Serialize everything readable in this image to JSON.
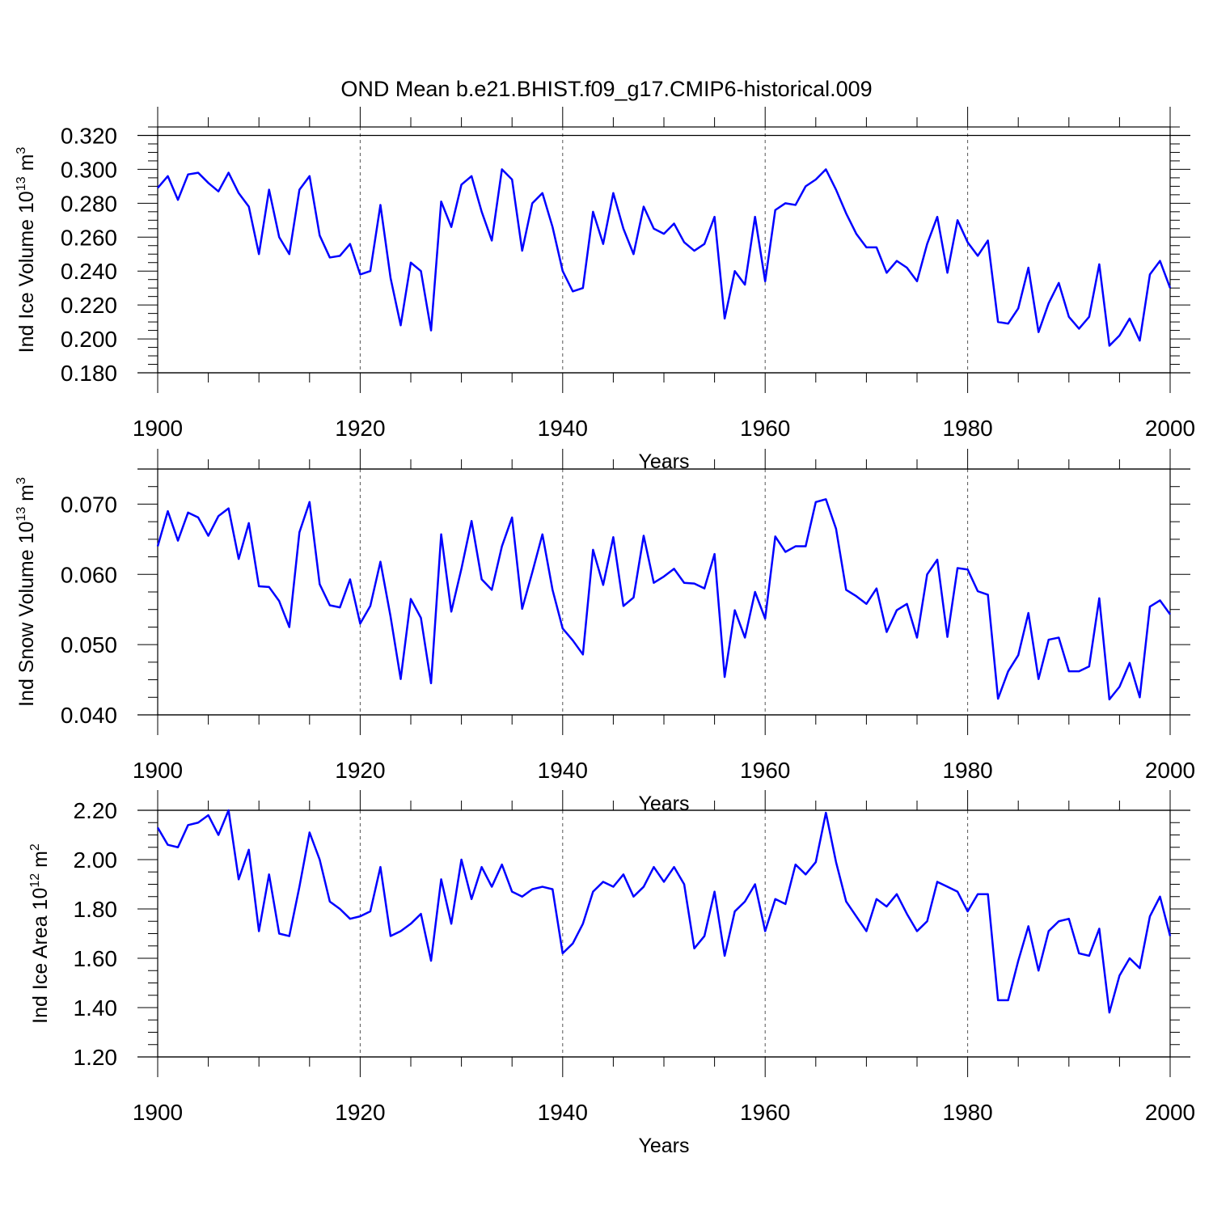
{
  "title": "OND Mean b.e21.BHIST.f09_g17.CMIP6-historical.009",
  "colors": {
    "series": "#0000ff",
    "axis": "#000000",
    "grid": "#555555"
  },
  "chart_data": [
    {
      "type": "line",
      "name": "ice-volume",
      "xlabel": "Years",
      "ylabel": {
        "base": "Ind Ice Volume 10",
        "exp1": "13",
        "unit": " m",
        "exp2": "3"
      },
      "xlim": [
        1900,
        2000
      ],
      "ylim": [
        0.18,
        0.325
      ],
      "xticks": [
        1900,
        1920,
        1940,
        1960,
        1980,
        2000
      ],
      "xtick_labels": [
        "1900",
        "1920",
        "1940",
        "1960",
        "1980",
        "2000"
      ],
      "yticks": [
        0.18,
        0.2,
        0.22,
        0.24,
        0.26,
        0.28,
        0.3,
        0.32
      ],
      "ytick_labels": [
        "0.180",
        "0.200",
        "0.220",
        "0.240",
        "0.260",
        "0.280",
        "0.300",
        "0.320"
      ],
      "ref_line": 0.32,
      "x_start": 1900,
      "values": [
        0.289,
        0.296,
        0.282,
        0.297,
        0.298,
        0.292,
        0.287,
        0.298,
        0.286,
        0.278,
        0.25,
        0.288,
        0.26,
        0.25,
        0.288,
        0.296,
        0.261,
        0.248,
        0.249,
        0.256,
        0.238,
        0.24,
        0.279,
        0.236,
        0.208,
        0.245,
        0.24,
        0.205,
        0.281,
        0.266,
        0.291,
        0.296,
        0.275,
        0.258,
        0.3,
        0.294,
        0.252,
        0.28,
        0.286,
        0.266,
        0.24,
        0.228,
        0.23,
        0.275,
        0.256,
        0.286,
        0.265,
        0.25,
        0.278,
        0.265,
        0.262,
        0.268,
        0.257,
        0.252,
        0.256,
        0.272,
        0.212,
        0.24,
        0.232,
        0.272,
        0.234,
        0.276,
        0.28,
        0.279,
        0.29,
        0.294,
        0.3,
        0.288,
        0.274,
        0.262,
        0.254,
        0.254,
        0.239,
        0.246,
        0.242,
        0.234,
        0.256,
        0.272,
        0.239,
        0.27,
        0.257,
        0.249,
        0.258,
        0.21,
        0.209,
        0.218,
        0.242,
        0.204,
        0.221,
        0.233,
        0.213,
        0.206,
        0.213,
        0.244,
        0.196,
        0.202,
        0.212,
        0.199,
        0.238,
        0.246,
        0.23
      ]
    },
    {
      "type": "line",
      "name": "snow-volume",
      "xlabel": "Years",
      "ylabel": {
        "base": "Ind Snow Volume 10",
        "exp1": "13",
        "unit": " m",
        "exp2": "3"
      },
      "xlim": [
        1900,
        2000
      ],
      "ylim": [
        0.04,
        0.075
      ],
      "xticks": [
        1900,
        1920,
        1940,
        1960,
        1980,
        2000
      ],
      "xtick_labels": [
        "1900",
        "1920",
        "1940",
        "1960",
        "1980",
        "2000"
      ],
      "yticks": [
        0.04,
        0.05,
        0.06,
        0.07
      ],
      "ytick_labels": [
        "0.040",
        "0.050",
        "0.060",
        "0.070"
      ],
      "ref_line": 0.075,
      "x_start": 1900,
      "values": [
        0.064,
        0.069,
        0.0648,
        0.0688,
        0.0681,
        0.0655,
        0.0683,
        0.0694,
        0.0622,
        0.0673,
        0.0583,
        0.0582,
        0.0562,
        0.0525,
        0.066,
        0.0703,
        0.0586,
        0.0556,
        0.0553,
        0.0593,
        0.053,
        0.0555,
        0.0618,
        0.054,
        0.0451,
        0.0565,
        0.0538,
        0.0445,
        0.0657,
        0.0547,
        0.0608,
        0.0676,
        0.0593,
        0.0578,
        0.064,
        0.0681,
        0.0551,
        0.0603,
        0.0657,
        0.0578,
        0.0523,
        0.0506,
        0.0486,
        0.0635,
        0.0585,
        0.0653,
        0.0555,
        0.0567,
        0.0655,
        0.0588,
        0.0597,
        0.0608,
        0.0588,
        0.0587,
        0.058,
        0.0629,
        0.0454,
        0.0549,
        0.051,
        0.0575,
        0.0537,
        0.0654,
        0.0632,
        0.064,
        0.064,
        0.0703,
        0.0707,
        0.0665,
        0.0578,
        0.0569,
        0.0558,
        0.058,
        0.0518,
        0.0549,
        0.0558,
        0.051,
        0.06,
        0.0621,
        0.0511,
        0.0609,
        0.0607,
        0.0576,
        0.0571,
        0.0423,
        0.0462,
        0.0485,
        0.0545,
        0.0451,
        0.0507,
        0.051,
        0.0462,
        0.0462,
        0.0469,
        0.0566,
        0.0422,
        0.044,
        0.0474,
        0.0425,
        0.0554,
        0.0563,
        0.0543
      ]
    },
    {
      "type": "line",
      "name": "ice-area",
      "xlabel": "Years",
      "ylabel": {
        "base": "Ind Ice Area 10",
        "exp1": "12",
        "unit": " m",
        "exp2": "2"
      },
      "xlim": [
        1900,
        2000
      ],
      "ylim": [
        1.2,
        2.2
      ],
      "xticks": [
        1900,
        1920,
        1940,
        1960,
        1980,
        2000
      ],
      "xtick_labels": [
        "1900",
        "1920",
        "1940",
        "1960",
        "1980",
        "2000"
      ],
      "yticks": [
        1.2,
        1.4,
        1.6,
        1.8,
        2.0,
        2.2
      ],
      "ytick_labels": [
        "1.20",
        "1.40",
        "1.60",
        "1.80",
        "2.00",
        "2.20"
      ],
      "ref_line": 2.2,
      "x_start": 1900,
      "values": [
        2.13,
        2.06,
        2.05,
        2.14,
        2.15,
        2.18,
        2.1,
        2.2,
        1.92,
        2.04,
        1.71,
        1.94,
        1.7,
        1.69,
        1.89,
        2.11,
        2.0,
        1.83,
        1.8,
        1.76,
        1.77,
        1.79,
        1.97,
        1.69,
        1.71,
        1.74,
        1.78,
        1.59,
        1.92,
        1.74,
        2.0,
        1.84,
        1.97,
        1.89,
        1.98,
        1.87,
        1.85,
        1.88,
        1.89,
        1.88,
        1.62,
        1.66,
        1.74,
        1.87,
        1.91,
        1.89,
        1.94,
        1.85,
        1.89,
        1.97,
        1.91,
        1.97,
        1.9,
        1.64,
        1.69,
        1.87,
        1.61,
        1.79,
        1.83,
        1.9,
        1.71,
        1.84,
        1.82,
        1.98,
        1.94,
        1.99,
        2.19,
        1.99,
        1.83,
        1.77,
        1.71,
        1.84,
        1.81,
        1.86,
        1.78,
        1.71,
        1.75,
        1.91,
        1.89,
        1.87,
        1.79,
        1.86,
        1.86,
        1.43,
        1.43,
        1.59,
        1.73,
        1.55,
        1.71,
        1.75,
        1.76,
        1.62,
        1.61,
        1.72,
        1.38,
        1.53,
        1.6,
        1.56,
        1.77,
        1.85,
        1.69
      ]
    }
  ]
}
